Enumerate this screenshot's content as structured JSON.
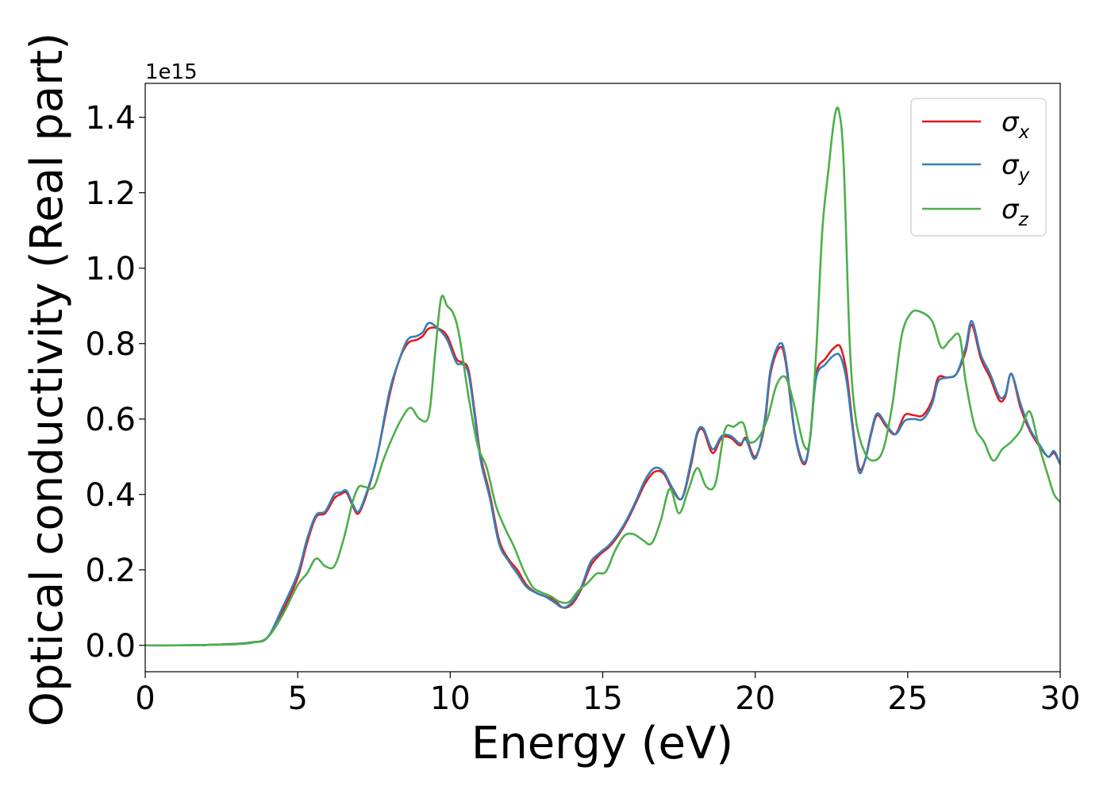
{
  "chart_data": {
    "type": "line",
    "title": "",
    "xlabel": "Energy (eV)",
    "ylabel": "Optical conductivity (Real part)",
    "y_offset_label": "1e15",
    "xlim": [
      0,
      30
    ],
    "ylim": [
      -0.07,
      1.49
    ],
    "x_ticks": [
      0,
      5,
      10,
      15,
      20,
      25,
      30
    ],
    "y_ticks": [
      0.0,
      0.2,
      0.4,
      0.6,
      0.8,
      1.0,
      1.2,
      1.4
    ],
    "x_tick_labels": [
      "0",
      "5",
      "10",
      "15",
      "20",
      "25",
      "30"
    ],
    "y_tick_labels": [
      "0.0",
      "0.2",
      "0.4",
      "0.6",
      "0.8",
      "1.0",
      "1.2",
      "1.4"
    ],
    "grid": false,
    "legend_position": "upper right",
    "legend": [
      {
        "name": "σ",
        "sub": "x",
        "color": "#e41a1c"
      },
      {
        "name": "σ",
        "sub": "y",
        "color": "#377eb8"
      },
      {
        "name": "σ",
        "sub": "z",
        "color": "#4daf4a"
      }
    ],
    "series": [
      {
        "name": "σx",
        "color": "#e41a1c",
        "x": [
          0,
          1,
          2,
          3,
          3.5,
          4,
          4.5,
          5,
          5.3,
          5.6,
          5.9,
          6.2,
          6.4,
          6.6,
          6.8,
          7.0,
          7.3,
          7.6,
          8.0,
          8.3,
          8.6,
          8.9,
          9.1,
          9.3,
          9.6,
          9.9,
          10.2,
          10.4,
          10.6,
          10.8,
          11.0,
          11.3,
          11.6,
          11.9,
          12.2,
          12.5,
          12.8,
          13.1,
          13.4,
          13.7,
          14.0,
          14.3,
          14.6,
          14.9,
          15.2,
          15.5,
          15.8,
          16.1,
          16.4,
          16.7,
          17.0,
          17.3,
          17.6,
          17.9,
          18.1,
          18.3,
          18.6,
          18.9,
          19.2,
          19.5,
          19.7,
          20.0,
          20.3,
          20.5,
          20.8,
          21.0,
          21.3,
          21.6,
          21.8,
          22.0,
          22.3,
          22.6,
          22.8,
          23.0,
          23.2,
          23.4,
          23.6,
          23.8,
          24.0,
          24.3,
          24.6,
          24.9,
          25.2,
          25.5,
          25.8,
          26.0,
          26.3,
          26.6,
          26.9,
          27.1,
          27.4,
          27.7,
          28.0,
          28.2,
          28.4,
          28.7,
          29.0,
          29.3,
          29.6,
          29.8,
          30.0
        ],
        "y": [
          0.0,
          0.0,
          0.001,
          0.004,
          0.008,
          0.02,
          0.09,
          0.18,
          0.27,
          0.34,
          0.35,
          0.39,
          0.4,
          0.405,
          0.37,
          0.35,
          0.41,
          0.5,
          0.66,
          0.75,
          0.8,
          0.81,
          0.82,
          0.84,
          0.84,
          0.82,
          0.76,
          0.75,
          0.73,
          0.62,
          0.5,
          0.4,
          0.28,
          0.23,
          0.2,
          0.16,
          0.14,
          0.13,
          0.12,
          0.1,
          0.11,
          0.15,
          0.21,
          0.24,
          0.26,
          0.29,
          0.33,
          0.38,
          0.43,
          0.46,
          0.455,
          0.41,
          0.39,
          0.48,
          0.56,
          0.57,
          0.51,
          0.55,
          0.55,
          0.53,
          0.55,
          0.5,
          0.58,
          0.72,
          0.79,
          0.75,
          0.56,
          0.48,
          0.55,
          0.72,
          0.76,
          0.79,
          0.79,
          0.72,
          0.58,
          0.47,
          0.49,
          0.56,
          0.61,
          0.58,
          0.56,
          0.61,
          0.61,
          0.61,
          0.65,
          0.71,
          0.71,
          0.72,
          0.78,
          0.85,
          0.76,
          0.71,
          0.65,
          0.66,
          0.72,
          0.63,
          0.57,
          0.53,
          0.5,
          0.51,
          0.48
        ]
      },
      {
        "name": "σy",
        "color": "#377eb8",
        "x": [
          0,
          1,
          2,
          3,
          3.5,
          4,
          4.5,
          5,
          5.3,
          5.6,
          5.9,
          6.2,
          6.4,
          6.6,
          6.8,
          7.0,
          7.3,
          7.6,
          8.0,
          8.3,
          8.6,
          8.9,
          9.1,
          9.3,
          9.6,
          9.9,
          10.2,
          10.4,
          10.6,
          10.8,
          11.0,
          11.3,
          11.6,
          11.9,
          12.2,
          12.5,
          12.8,
          13.1,
          13.4,
          13.7,
          14.0,
          14.3,
          14.6,
          14.9,
          15.2,
          15.5,
          15.8,
          16.1,
          16.4,
          16.7,
          17.0,
          17.3,
          17.6,
          17.9,
          18.1,
          18.3,
          18.6,
          18.9,
          19.2,
          19.5,
          19.7,
          20.0,
          20.3,
          20.5,
          20.8,
          21.0,
          21.3,
          21.6,
          21.8,
          22.0,
          22.3,
          22.6,
          22.8,
          23.0,
          23.2,
          23.4,
          23.6,
          23.8,
          24.0,
          24.3,
          24.6,
          24.9,
          25.2,
          25.5,
          25.8,
          26.0,
          26.3,
          26.6,
          26.9,
          27.1,
          27.4,
          27.7,
          28.0,
          28.2,
          28.4,
          28.7,
          29.0,
          29.3,
          29.6,
          29.8,
          30.0
        ],
        "y": [
          0.0,
          0.0,
          0.001,
          0.004,
          0.008,
          0.02,
          0.1,
          0.19,
          0.28,
          0.345,
          0.355,
          0.4,
          0.405,
          0.41,
          0.375,
          0.355,
          0.415,
          0.5,
          0.67,
          0.75,
          0.81,
          0.82,
          0.83,
          0.855,
          0.84,
          0.81,
          0.75,
          0.745,
          0.72,
          0.61,
          0.49,
          0.39,
          0.27,
          0.225,
          0.19,
          0.155,
          0.14,
          0.13,
          0.115,
          0.1,
          0.115,
          0.155,
          0.22,
          0.245,
          0.265,
          0.295,
          0.335,
          0.385,
          0.44,
          0.47,
          0.46,
          0.415,
          0.39,
          0.49,
          0.565,
          0.575,
          0.52,
          0.555,
          0.555,
          0.535,
          0.545,
          0.495,
          0.59,
          0.73,
          0.8,
          0.76,
          0.565,
          0.485,
          0.55,
          0.71,
          0.745,
          0.77,
          0.765,
          0.7,
          0.57,
          0.46,
          0.49,
          0.565,
          0.615,
          0.585,
          0.56,
          0.595,
          0.6,
          0.6,
          0.64,
          0.7,
          0.71,
          0.72,
          0.79,
          0.86,
          0.77,
          0.72,
          0.66,
          0.665,
          0.72,
          0.64,
          0.575,
          0.535,
          0.5,
          0.515,
          0.48
        ]
      },
      {
        "name": "σz",
        "color": "#4daf4a",
        "x": [
          0,
          1,
          2,
          3,
          3.5,
          4,
          4.5,
          5,
          5.3,
          5.6,
          5.9,
          6.2,
          6.5,
          6.8,
          7.0,
          7.2,
          7.5,
          7.8,
          8.1,
          8.4,
          8.7,
          9.0,
          9.3,
          9.5,
          9.7,
          9.9,
          10.1,
          10.3,
          10.6,
          10.9,
          11.2,
          11.5,
          11.8,
          12.1,
          12.4,
          12.7,
          13.0,
          13.3,
          13.6,
          13.9,
          14.2,
          14.5,
          14.8,
          15.1,
          15.4,
          15.7,
          16.0,
          16.3,
          16.6,
          16.9,
          17.2,
          17.5,
          17.8,
          18.1,
          18.4,
          18.7,
          19.0,
          19.3,
          19.6,
          19.8,
          20.1,
          20.4,
          20.7,
          21.0,
          21.3,
          21.6,
          21.8,
          22.0,
          22.2,
          22.4,
          22.6,
          22.75,
          22.9,
          23.1,
          23.3,
          23.6,
          23.9,
          24.2,
          24.5,
          24.8,
          25.1,
          25.4,
          25.8,
          26.1,
          26.4,
          26.7,
          26.9,
          27.2,
          27.5,
          27.8,
          28.1,
          28.4,
          28.7,
          29.0,
          29.3,
          29.6,
          29.8,
          30.0
        ],
        "y": [
          0.0,
          0.0,
          0.001,
          0.003,
          0.007,
          0.02,
          0.08,
          0.16,
          0.19,
          0.23,
          0.21,
          0.21,
          0.28,
          0.38,
          0.42,
          0.42,
          0.42,
          0.49,
          0.55,
          0.6,
          0.63,
          0.6,
          0.61,
          0.77,
          0.92,
          0.9,
          0.88,
          0.82,
          0.66,
          0.53,
          0.47,
          0.37,
          0.31,
          0.26,
          0.2,
          0.155,
          0.14,
          0.13,
          0.115,
          0.115,
          0.145,
          0.165,
          0.19,
          0.195,
          0.25,
          0.29,
          0.295,
          0.28,
          0.27,
          0.33,
          0.415,
          0.35,
          0.41,
          0.47,
          0.42,
          0.43,
          0.57,
          0.58,
          0.59,
          0.54,
          0.55,
          0.6,
          0.69,
          0.71,
          0.63,
          0.53,
          0.55,
          0.78,
          1.1,
          1.26,
          1.4,
          1.415,
          1.28,
          0.8,
          0.6,
          0.51,
          0.49,
          0.52,
          0.64,
          0.82,
          0.88,
          0.885,
          0.86,
          0.79,
          0.81,
          0.82,
          0.7,
          0.58,
          0.54,
          0.49,
          0.52,
          0.54,
          0.57,
          0.62,
          0.53,
          0.45,
          0.4,
          0.38
        ]
      }
    ]
  }
}
